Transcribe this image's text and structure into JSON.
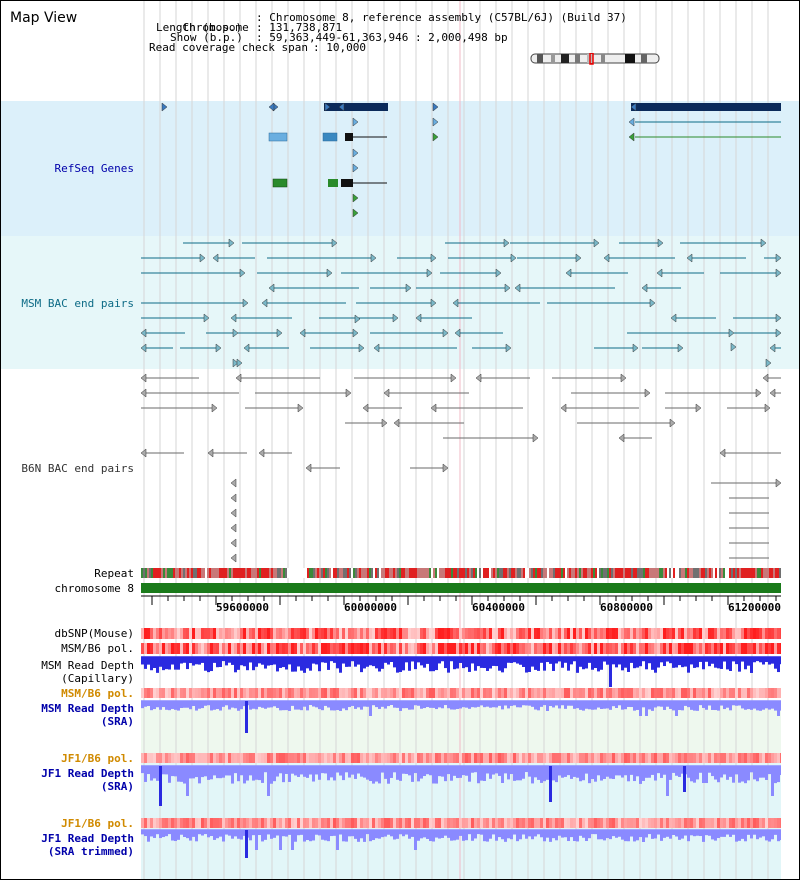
{
  "title": "Map View",
  "info": {
    "chromosome_key": "Chromosome",
    "chromosome_val": ": Chromosome 8, reference assembly (C57BL/6J) (Build 37)",
    "length_key": "Length (b.p.)",
    "length_val": ": 131,738,871",
    "show_key": "Show (b.p.)",
    "show_val": ": 59,363,449-61,363,946 : 2,000,498 bp",
    "span_key": "Read coverage check span",
    "span_val": ": 10,000"
  },
  "tracks": {
    "refseq": "RefSeq Genes",
    "msm_bac": "MSM BAC end pairs",
    "b6n_bac": "B6N BAC end pairs",
    "repeat": "Repeat",
    "chromosome": "chromosome 8",
    "dbsnp": "dbSNP(Mouse)",
    "msm_b6_pol_1": "MSM/B6 pol.",
    "msm_read_depth_cap": "MSM Read Depth\n(Capillary)",
    "msm_b6_pol_2": "MSM/B6 pol.",
    "msm_read_depth_sra": "MSM Read Depth\n(SRA)",
    "jf1_b6_pol_1": "JF1/B6 pol.",
    "jf1_read_depth_sra": "JF1 Read Depth\n(SRA)",
    "jf1_b6_pol_2": "JF1/B6 pol.",
    "jf1_read_depth_trim": "JF1 Read Depth\n(SRA trimmed)"
  },
  "axis": {
    "ticks": [
      "59600000",
      "60000000",
      "60400000",
      "60800000",
      "61200000"
    ]
  },
  "colors": {
    "refseq_bg": "#dcf0fa",
    "msm_bac_bg": "#e6f7f9",
    "gene_dark": "#0b2a5a",
    "msm_line": "#0d6b86",
    "b6n_line": "#6a6a6a",
    "chromosome_green": "#1a7a1a",
    "depth_blue": "#2a2ae0",
    "depth_light": "#8a8aff",
    "label_blue": "#0000aa",
    "label_orange": "#d08a00",
    "label_teal": "#0d6b86"
  }
}
